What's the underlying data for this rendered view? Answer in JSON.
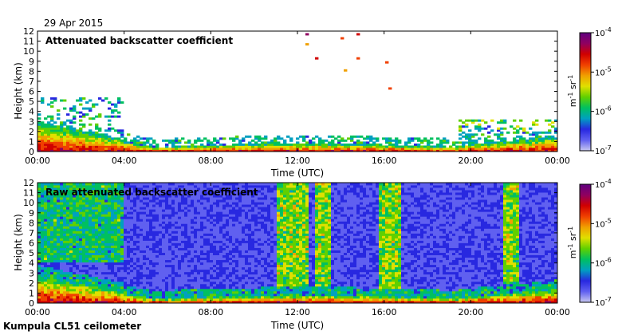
{
  "date_label": "29 Apr 2015",
  "footer_label": "Kumpula CL51 ceilometer",
  "colors": {
    "scale": [
      "#c8c8f0",
      "#6060f0",
      "#2828e0",
      "#00a0c0",
      "#00c060",
      "#60d000",
      "#e0e000",
      "#f0a000",
      "#f04000",
      "#d00000",
      "#900060",
      "#600080"
    ],
    "axis": "#000000"
  },
  "chart_data": [
    {
      "type": "heatmap",
      "title": "Attenuated backscatter coefficient",
      "xlabel": "Time (UTC)",
      "ylabel": "Height (km)",
      "xlim": [
        "00:00",
        "24:00"
      ],
      "ylim": [
        0,
        12
      ],
      "x_ticks": [
        "00:00",
        "04:00",
        "08:00",
        "12:00",
        "16:00",
        "20:00",
        "00:00"
      ],
      "y_ticks": [
        "0",
        "1",
        "2",
        "3",
        "4",
        "5",
        "6",
        "7",
        "8",
        "9",
        "10",
        "11",
        "12"
      ],
      "colorbar": {
        "scale": "log",
        "range": [
          1e-07,
          0.0001
        ],
        "tick_labels": [
          {
            "base": "10",
            "exp": "-4"
          },
          {
            "base": "10",
            "exp": "-5"
          },
          {
            "base": "10",
            "exp": "-6"
          },
          {
            "base": "10",
            "exp": "-7"
          }
        ],
        "unit": {
          "m": "m",
          "m_exp": "-1",
          "sr": "sr",
          "sr_exp": "-1"
        }
      }
    },
    {
      "type": "heatmap",
      "title": "Raw attenuated backscatter coefficient",
      "xlabel": "Time (UTC)",
      "ylabel": "Height (km)",
      "xlim": [
        "00:00",
        "24:00"
      ],
      "ylim": [
        0,
        12
      ],
      "x_ticks": [
        "00:00",
        "04:00",
        "08:00",
        "12:00",
        "16:00",
        "20:00",
        "00:00"
      ],
      "y_ticks": [
        "0",
        "1",
        "2",
        "3",
        "4",
        "5",
        "6",
        "7",
        "8",
        "9",
        "10",
        "11",
        "12"
      ],
      "colorbar": {
        "scale": "log",
        "range": [
          1e-07,
          0.0001
        ],
        "tick_labels": [
          {
            "base": "10",
            "exp": "-4"
          },
          {
            "base": "10",
            "exp": "-5"
          },
          {
            "base": "10",
            "exp": "-6"
          },
          {
            "base": "10",
            "exp": "-7"
          }
        ],
        "unit": {
          "m": "m",
          "m_exp": "-1",
          "sr": "sr",
          "sr_exp": "-1"
        }
      }
    }
  ]
}
